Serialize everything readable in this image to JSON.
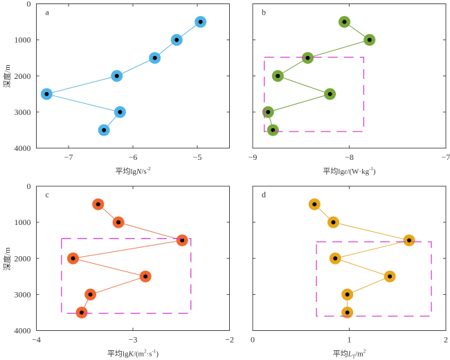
{
  "y_axis_label": "深度/m",
  "chart_data": [
    {
      "type": "scatter",
      "panel_label": "a",
      "xlabel_prefix": "平均lg",
      "xlabel_var": "N",
      "xlabel_suffix": "/s",
      "xlabel_sup": "-2",
      "ylabel": "深度/m",
      "xlim": [
        -7.5,
        -4.5
      ],
      "ylim": [
        0,
        4000
      ],
      "y_inverted": true,
      "xticks": [
        -7,
        -6,
        -5
      ],
      "xtick_labels": [
        "−7",
        "−6",
        "−5"
      ],
      "yticks": [
        0,
        1000,
        2000,
        3000,
        4000
      ],
      "ytick_labels": [
        "0",
        "1000",
        "2000",
        "3000",
        "4000"
      ],
      "show_ytick_labels": true,
      "color": "#4fb3e8",
      "line_color": "#5ab6e4",
      "series": [
        {
          "name": "N",
          "x": [
            -4.95,
            -5.32,
            -5.66,
            -6.25,
            -7.34,
            -6.2,
            -6.45
          ],
          "y": [
            500,
            1000,
            1500,
            2000,
            2500,
            3000,
            3500
          ]
        }
      ],
      "highlight_box": null,
      "grid": false
    },
    {
      "type": "scatter",
      "panel_label": "b",
      "xlabel_prefix": "平均lg",
      "xlabel_var": "ε",
      "xlabel_suffix": "/(W·kg",
      "xlabel_sup": "-1",
      "xlabel_tail": ")",
      "ylabel": "",
      "xlim": [
        -9,
        -7
      ],
      "ylim": [
        0,
        4000
      ],
      "y_inverted": true,
      "xticks": [
        -9,
        -8,
        -7
      ],
      "xtick_labels": [
        "−9",
        "−8",
        "−7"
      ],
      "yticks": [
        0,
        1000,
        2000,
        3000,
        4000
      ],
      "ytick_labels": [],
      "show_ytick_labels": false,
      "color": "#76a83a",
      "line_color": "#6a9e2e",
      "series": [
        {
          "name": "epsilon",
          "x": [
            -8.05,
            -7.79,
            -8.43,
            -8.74,
            -8.2,
            -8.84,
            -8.79
          ],
          "y": [
            500,
            1000,
            1500,
            2000,
            2500,
            3000,
            3500
          ]
        }
      ],
      "highlight_box": {
        "x": [
          -8.88,
          -7.85
        ],
        "y": [
          1480,
          3540
        ],
        "color": "#d63fd0",
        "style": "dashed"
      },
      "grid": false
    },
    {
      "type": "scatter",
      "panel_label": "c",
      "xlabel_prefix": "平均lg",
      "xlabel_var": "K",
      "xlabel_suffix": "/(m",
      "xlabel_sup": "2",
      "xlabel_mid": "·s",
      "xlabel_sup2": "-1",
      "xlabel_tail": ")",
      "ylabel": "深度/m",
      "xlim": [
        -4,
        -2
      ],
      "ylim": [
        0,
        4000
      ],
      "y_inverted": true,
      "xticks": [
        -4,
        -3,
        -2
      ],
      "xtick_labels": [
        "−4",
        "−3",
        "−2"
      ],
      "yticks": [
        0,
        1000,
        2000,
        3000,
        4000
      ],
      "ytick_labels": [
        "0",
        "1000",
        "2000",
        "3000",
        "4000"
      ],
      "show_ytick_labels": true,
      "color": "#f2652e",
      "line_color": "#ea7a4e",
      "series": [
        {
          "name": "K",
          "x": [
            -3.36,
            -3.15,
            -2.49,
            -3.62,
            -2.87,
            -3.44,
            -3.53
          ],
          "y": [
            500,
            1000,
            1500,
            2000,
            2500,
            3000,
            3500
          ]
        }
      ],
      "highlight_box": {
        "x": [
          -3.74,
          -2.4
        ],
        "y": [
          1450,
          3520
        ],
        "color": "#d63fd0",
        "style": "dashed"
      },
      "grid": false
    },
    {
      "type": "scatter",
      "panel_label": "d",
      "xlabel_prefix": "平均",
      "xlabel_var": "L",
      "xlabel_sub": "T",
      "xlabel_suffix": "/m",
      "xlabel_sup": "2",
      "ylabel": "",
      "xlim": [
        0,
        2
      ],
      "ylim": [
        0,
        4000
      ],
      "y_inverted": true,
      "xticks": [
        0,
        1,
        2
      ],
      "xtick_labels": [
        "0",
        "1",
        "2"
      ],
      "yticks": [
        0,
        1000,
        2000,
        3000,
        4000
      ],
      "ytick_labels": [],
      "show_ytick_labels": false,
      "color": "#e8a61c",
      "line_color": "#e6ae3a",
      "series": [
        {
          "name": "LT",
          "x": [
            0.64,
            0.835,
            1.62,
            0.855,
            1.42,
            0.98,
            0.98
          ],
          "y": [
            500,
            1000,
            1500,
            2000,
            2500,
            3000,
            3500
          ]
        }
      ],
      "highlight_box": {
        "x": [
          0.66,
          1.85
        ],
        "y": [
          1540,
          3600
        ],
        "color": "#d63fd0",
        "style": "dashed"
      },
      "grid": false
    }
  ]
}
